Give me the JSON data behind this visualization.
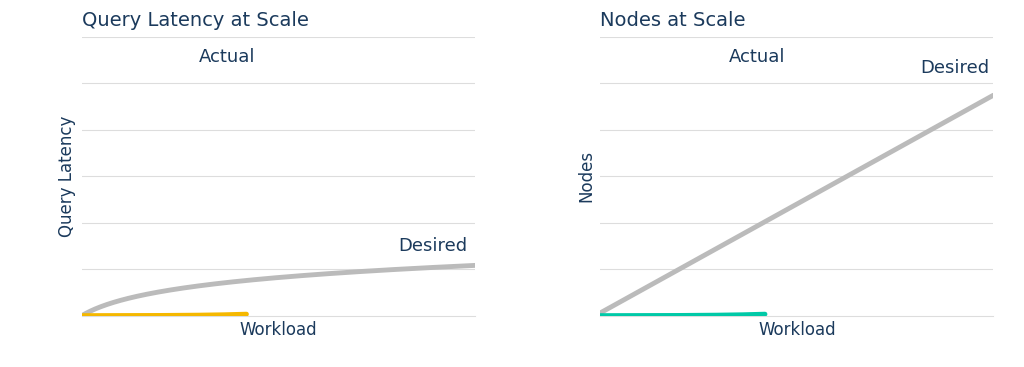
{
  "chart1_title": "Query Latency at Scale",
  "chart1_xlabel": "Workload",
  "chart1_ylabel": "Query Latency",
  "chart1_actual_color": "#F5B800",
  "chart1_desired_color": "#BBBBBB",
  "chart1_actual_label": "Actual",
  "chart1_desired_label": "Desired",
  "chart2_title": "Nodes at Scale",
  "chart2_xlabel": "Workload",
  "chart2_ylabel": "Nodes",
  "chart2_actual_color": "#00C9A7",
  "chart2_desired_color": "#BBBBBB",
  "chart2_actual_label": "Actual",
  "chart2_desired_label": "Desired",
  "title_color": "#1B3A5C",
  "label_color": "#1B3A5C",
  "annotation_color": "#1B3A5C",
  "grid_color": "#DDDDDD",
  "background_color": "#FFFFFF",
  "line_width": 3.5,
  "annotation_fontsize": 13,
  "title_fontsize": 14,
  "axis_label_fontsize": 12,
  "n_gridlines": 6
}
